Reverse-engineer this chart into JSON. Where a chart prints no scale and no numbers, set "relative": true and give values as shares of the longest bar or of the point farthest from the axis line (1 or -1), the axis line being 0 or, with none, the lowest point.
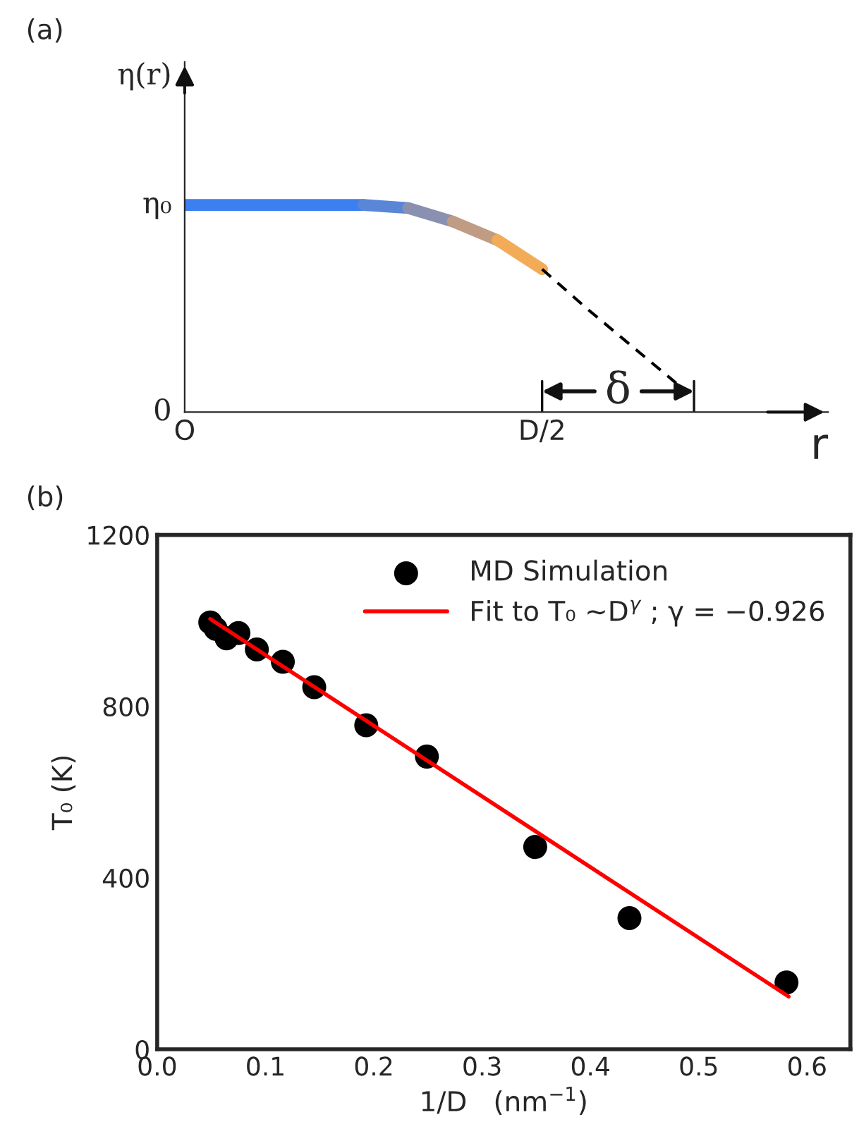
{
  "chart_data": [
    {
      "type": "line",
      "title": "(a)",
      "ylabel": "η(r)",
      "xlabel": "r",
      "relative": true,
      "categories": [
        "O",
        null,
        null,
        null,
        null,
        null,
        null,
        null,
        "D/2",
        null,
        null,
        null
      ],
      "series": [
        {
          "values": [
            1,
            1,
            1,
            1,
            1,
            null,
            null,
            null,
            null,
            null,
            null,
            null
          ],
          "color": "#3b7ff0",
          "line_style": "solid"
        },
        {
          "values": [
            null,
            null,
            null,
            null,
            1,
            0.985,
            null,
            null,
            null,
            null,
            null,
            null
          ],
          "color": "#5a86d8",
          "line_style": "solid"
        },
        {
          "values": [
            null,
            null,
            null,
            null,
            null,
            0.985,
            0.92,
            null,
            null,
            null,
            null,
            null
          ],
          "color": "#8a90b0",
          "line_style": "solid"
        },
        {
          "values": [
            null,
            null,
            null,
            null,
            null,
            null,
            0.92,
            0.83,
            null,
            null,
            null,
            null
          ],
          "color": "#c09c84",
          "line_style": "solid"
        },
        {
          "values": [
            null,
            null,
            null,
            null,
            null,
            null,
            null,
            0.83,
            0.69,
            null,
            null,
            null
          ],
          "color": "#f2ac58",
          "line_style": "solid"
        },
        {
          "values": [
            null,
            null,
            null,
            null,
            null,
            null,
            null,
            null,
            0.69,
            0.5,
            0.32,
            0.14
          ],
          "color": "#000000",
          "line_style": "dashed"
        }
      ],
      "annotations": [
        "η₀",
        "0",
        "δ"
      ],
      "marker": "none"
    },
    {
      "type": "scatter",
      "title": "(b)",
      "xlabel": "1/D   (nm$^{−1}$)",
      "ylabel": "T₀ (K)",
      "xlim": [
        0,
        0.64
      ],
      "ylim": [
        0,
        1200
      ],
      "xticks": [
        {
          "value": 0,
          "label": "0.0"
        },
        0.1,
        0.2,
        0.3,
        0.4,
        0.5,
        0.6
      ],
      "yticks": [
        0,
        400,
        800,
        1200
      ],
      "series": [
        {
          "name": "MD Simulation",
          "type": "scatter",
          "color": "#000000",
          "marker": "circle",
          "x": [
            0.049,
            0.054,
            0.064,
            0.075,
            0.092,
            0.116,
            0.145,
            0.193,
            0.249,
            0.349,
            0.436,
            0.581
          ],
          "values": [
            996,
            981,
            959,
            971,
            933,
            904,
            845,
            756,
            683,
            472,
            306,
            156
          ]
        },
        {
          "name": "Fit to T₀ ~D$^{γ}$ ; γ = −0.926",
          "type": "line",
          "color": "#ff0000",
          "marker": "none",
          "x": [
            0.049,
            0.583
          ],
          "values": [
            1004,
            123
          ]
        }
      ],
      "legend": "top right"
    }
  ]
}
